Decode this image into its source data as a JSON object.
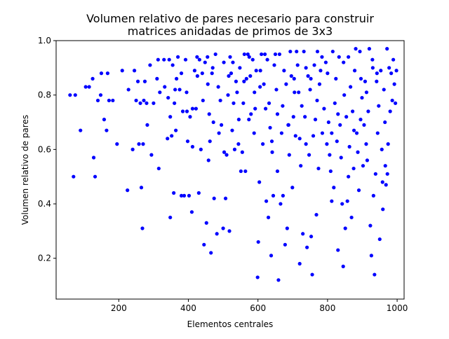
{
  "figure": {
    "title_line1": "Volumen relativo de pares necesario para construir",
    "title_line2": "matrices anidadas de primos de 3x3"
  },
  "chart_data": {
    "type": "scatter",
    "title": "Volumen relativo de pares necesario para construir matrices anidadas de primos de 3x3",
    "xlabel": "Elementos centrales",
    "ylabel": "Volumen relativo de pares",
    "xlim": [
      20,
      1020
    ],
    "ylim": [
      0.05,
      1.0
    ],
    "xticks": [
      200,
      400,
      600,
      800,
      1000
    ],
    "xtick_labels": [
      "200",
      "400",
      "600",
      "800",
      "1000"
    ],
    "yticks": [
      0.2,
      0.4,
      0.6,
      0.8,
      1.0
    ],
    "ytick_labels": [
      "0.2",
      "0.4",
      "0.6",
      "0.8",
      "1.0"
    ],
    "grid": false,
    "marker_color": "#0000ff",
    "series": [
      {
        "points": [
          [
            60,
            0.8
          ],
          [
            70,
            0.5
          ],
          [
            75,
            0.8
          ],
          [
            90,
            0.67
          ],
          [
            105,
            0.83
          ],
          [
            115,
            0.83
          ],
          [
            125,
            0.86
          ],
          [
            128,
            0.57
          ],
          [
            132,
            0.5
          ],
          [
            140,
            0.78
          ],
          [
            148,
            0.8
          ],
          [
            150,
            0.88
          ],
          [
            158,
            0.71
          ],
          [
            165,
            0.67
          ],
          [
            168,
            0.88
          ],
          [
            172,
            0.78
          ],
          [
            183,
            0.78
          ],
          [
            195,
            0.62
          ],
          [
            210,
            0.89
          ],
          [
            225,
            0.45
          ],
          [
            228,
            0.82
          ],
          [
            240,
            0.6
          ],
          [
            245,
            0.89
          ],
          [
            250,
            0.78
          ],
          [
            255,
            0.85
          ],
          [
            258,
            0.62
          ],
          [
            262,
            0.77
          ],
          [
            265,
            0.46
          ],
          [
            268,
            0.31
          ],
          [
            270,
            0.62
          ],
          [
            272,
            0.78
          ],
          [
            275,
            0.85
          ],
          [
            280,
            0.77
          ],
          [
            282,
            0.69
          ],
          [
            290,
            0.91
          ],
          [
            294,
            0.58
          ],
          [
            300,
            0.77
          ],
          [
            310,
            0.86
          ],
          [
            313,
            0.93
          ],
          [
            315,
            0.53
          ],
          [
            330,
            0.93
          ],
          [
            340,
            0.64
          ],
          [
            342,
            0.79
          ],
          [
            345,
            0.93
          ],
          [
            348,
            0.35
          ],
          [
            352,
            0.65
          ],
          [
            355,
            0.91
          ],
          [
            358,
            0.44
          ],
          [
            360,
            0.77
          ],
          [
            362,
            0.82
          ],
          [
            366,
            0.86
          ],
          [
            370,
            0.94
          ],
          [
            375,
            0.82
          ],
          [
            380,
            0.43
          ],
          [
            384,
            0.74
          ],
          [
            388,
            0.43
          ],
          [
            392,
            0.93
          ],
          [
            395,
            0.81
          ],
          [
            398,
            0.63
          ],
          [
            402,
            0.43
          ],
          [
            405,
            0.72
          ],
          [
            410,
            0.37
          ],
          [
            412,
            0.75
          ],
          [
            418,
            0.89
          ],
          [
            422,
            0.75
          ],
          [
            425,
            0.94
          ],
          [
            430,
            0.44
          ],
          [
            432,
            0.93
          ],
          [
            436,
            0.6
          ],
          [
            440,
            0.88
          ],
          [
            445,
            0.25
          ],
          [
            448,
            0.92
          ],
          [
            452,
            0.33
          ],
          [
            455,
            0.94
          ],
          [
            458,
            0.56
          ],
          [
            460,
            0.73
          ],
          [
            462,
            0.63
          ],
          [
            465,
            0.22
          ],
          [
            468,
            0.88
          ],
          [
            470,
            0.9
          ],
          [
            474,
            0.42
          ],
          [
            478,
            0.95
          ],
          [
            482,
            0.29
          ],
          [
            488,
            0.66
          ],
          [
            492,
            0.78
          ],
          [
            495,
            0.69
          ],
          [
            500,
            0.31
          ],
          [
            503,
            0.59
          ],
          [
            507,
            0.42
          ],
          [
            510,
            0.58
          ],
          [
            514,
            0.8
          ],
          [
            518,
            0.3
          ],
          [
            520,
            0.94
          ],
          [
            523,
            0.88
          ],
          [
            526,
            0.67
          ],
          [
            528,
            0.92
          ],
          [
            533,
            0.6
          ],
          [
            537,
            0.85
          ],
          [
            540,
            0.81
          ],
          [
            545,
            0.71
          ],
          [
            548,
            0.9
          ],
          [
            551,
            0.52
          ],
          [
            555,
            0.59
          ],
          [
            558,
            0.77
          ],
          [
            561,
            0.95
          ],
          [
            564,
            0.52
          ],
          [
            567,
            0.86
          ],
          [
            571,
            0.95
          ],
          [
            575,
            0.94
          ],
          [
            578,
            0.87
          ],
          [
            580,
            0.73
          ],
          [
            585,
            0.93
          ],
          [
            589,
            0.66
          ],
          [
            592,
            0.75
          ],
          [
            595,
            0.89
          ],
          [
            599,
            0.13
          ],
          [
            601,
            0.26
          ],
          [
            604,
            0.48
          ],
          [
            607,
            0.89
          ],
          [
            610,
            0.95
          ],
          [
            614,
            0.62
          ],
          [
            617,
            0.84
          ],
          [
            620,
            0.95
          ],
          [
            624,
            0.41
          ],
          [
            627,
            0.93
          ],
          [
            630,
            0.35
          ],
          [
            632,
            0.77
          ],
          [
            635,
            0.68
          ],
          [
            638,
            0.21
          ],
          [
            641,
            0.59
          ],
          [
            644,
            0.43
          ],
          [
            647,
            0.91
          ],
          [
            650,
            0.95
          ],
          [
            653,
            0.82
          ],
          [
            656,
            0.52
          ],
          [
            659,
            0.12
          ],
          [
            662,
            0.95
          ],
          [
            665,
            0.4
          ],
          [
            668,
            0.66
          ],
          [
            671,
            0.76
          ],
          [
            675,
            0.89
          ],
          [
            678,
            0.25
          ],
          [
            681,
            0.84
          ],
          [
            684,
            0.31
          ],
          [
            687,
            0.69
          ],
          [
            690,
            0.58
          ],
          [
            693,
            0.96
          ],
          [
            696,
            0.87
          ],
          [
            699,
            0.46
          ],
          [
            702,
            0.72
          ],
          [
            705,
            0.81
          ],
          [
            708,
            0.65
          ],
          [
            711,
            0.96
          ],
          [
            714,
            0.91
          ],
          [
            717,
            0.81
          ],
          [
            720,
            0.18
          ],
          [
            723,
            0.54
          ],
          [
            726,
            0.76
          ],
          [
            729,
            0.29
          ],
          [
            732,
            0.96
          ],
          [
            735,
            0.72
          ],
          [
            738,
            0.62
          ],
          [
            741,
            0.24
          ],
          [
            744,
            0.87
          ],
          [
            747,
            0.58
          ],
          [
            750,
            0.82
          ],
          [
            753,
            0.28
          ],
          [
            756,
            0.14
          ],
          [
            759,
            0.65
          ],
          [
            762,
            0.91
          ],
          [
            765,
            0.71
          ],
          [
            768,
            0.36
          ],
          [
            771,
            0.96
          ],
          [
            774,
            0.53
          ],
          [
            777,
            0.84
          ],
          [
            780,
            0.89
          ],
          [
            785,
            0.66
          ],
          [
            790,
            0.75
          ],
          [
            795,
            0.92
          ],
          [
            800,
            0.88
          ],
          [
            803,
            0.7
          ],
          [
            806,
            0.58
          ],
          [
            809,
            0.52
          ],
          [
            812,
            0.41
          ],
          [
            815,
            0.96
          ],
          [
            818,
            0.46
          ],
          [
            821,
            0.77
          ],
          [
            824,
            0.86
          ],
          [
            827,
            0.63
          ],
          [
            830,
            0.23
          ],
          [
            833,
            0.94
          ],
          [
            836,
            0.69
          ],
          [
            839,
            0.57
          ],
          [
            842,
            0.4
          ],
          [
            845,
            0.17
          ],
          [
            848,
            0.8
          ],
          [
            851,
            0.31
          ],
          [
            854,
            0.72
          ],
          [
            857,
            0.41
          ],
          [
            860,
            0.94
          ],
          [
            863,
            0.61
          ],
          [
            866,
            0.83
          ],
          [
            869,
            0.35
          ],
          [
            872,
            0.74
          ],
          [
            875,
            0.53
          ],
          [
            878,
            0.89
          ],
          [
            881,
            0.97
          ],
          [
            884,
            0.66
          ],
          [
            887,
            0.59
          ],
          [
            890,
            0.45
          ],
          [
            893,
            0.96
          ],
          [
            896,
            0.86
          ],
          [
            899,
            0.79
          ],
          [
            902,
            0.54
          ],
          [
            905,
            0.69
          ],
          [
            908,
            0.85
          ],
          [
            911,
            0.62
          ],
          [
            914,
            0.56
          ],
          [
            917,
            0.74
          ],
          [
            920,
            0.97
          ],
          [
            923,
            0.32
          ],
          [
            926,
            0.21
          ],
          [
            929,
            0.93
          ],
          [
            932,
            0.43
          ],
          [
            935,
            0.14
          ],
          [
            938,
            0.51
          ],
          [
            941,
            0.85
          ],
          [
            944,
            0.66
          ],
          [
            947,
            0.76
          ],
          [
            950,
            0.27
          ],
          [
            953,
            0.89
          ],
          [
            956,
            0.6
          ],
          [
            959,
            0.38
          ],
          [
            962,
            0.82
          ],
          [
            965,
            0.7
          ],
          [
            968,
            0.47
          ],
          [
            971,
            0.97
          ],
          [
            974,
            0.62
          ],
          [
            977,
            0.9
          ],
          [
            980,
            0.74
          ],
          [
            983,
            0.88
          ],
          [
            986,
            0.78
          ],
          [
            989,
            0.93
          ],
          [
            992,
            0.84
          ],
          [
            995,
            0.77
          ],
          [
            998,
            0.89
          ],
          [
            972,
            0.51
          ],
          [
            966,
            0.54
          ],
          [
            958,
            0.48
          ],
          [
            942,
            0.88
          ],
          [
            930,
            0.9
          ],
          [
            912,
            0.81
          ],
          [
            895,
            0.71
          ],
          [
            876,
            0.67
          ],
          [
            860,
            0.5
          ],
          [
            846,
            0.92
          ],
          [
            830,
            0.73
          ],
          [
            812,
            0.66
          ],
          [
            798,
            0.62
          ],
          [
            784,
            0.94
          ],
          [
            770,
            0.78
          ],
          [
            752,
            0.86
          ],
          [
            738,
            0.9
          ],
          [
            720,
            0.64
          ],
          [
            704,
            0.86
          ],
          [
            688,
            0.69
          ],
          [
            672,
            0.43
          ],
          [
            656,
            0.73
          ],
          [
            640,
            0.63
          ],
          [
            622,
            0.75
          ],
          [
            606,
            0.83
          ],
          [
            590,
            0.81
          ],
          [
            574,
            0.71
          ],
          [
            560,
            0.85
          ],
          [
            544,
            0.62
          ],
          [
            530,
            0.77
          ],
          [
            516,
            0.87
          ],
          [
            502,
            0.92
          ],
          [
            486,
            0.83
          ],
          [
            472,
            0.7
          ],
          [
            456,
            0.84
          ],
          [
            442,
            0.78
          ],
          [
            426,
            0.87
          ],
          [
            412,
            0.61
          ],
          [
            396,
            0.74
          ],
          [
            380,
            0.88
          ],
          [
            364,
            0.67
          ],
          [
            348,
            0.72
          ],
          [
            332,
            0.83
          ],
          [
            318,
            0.81
          ]
        ]
      }
    ]
  }
}
